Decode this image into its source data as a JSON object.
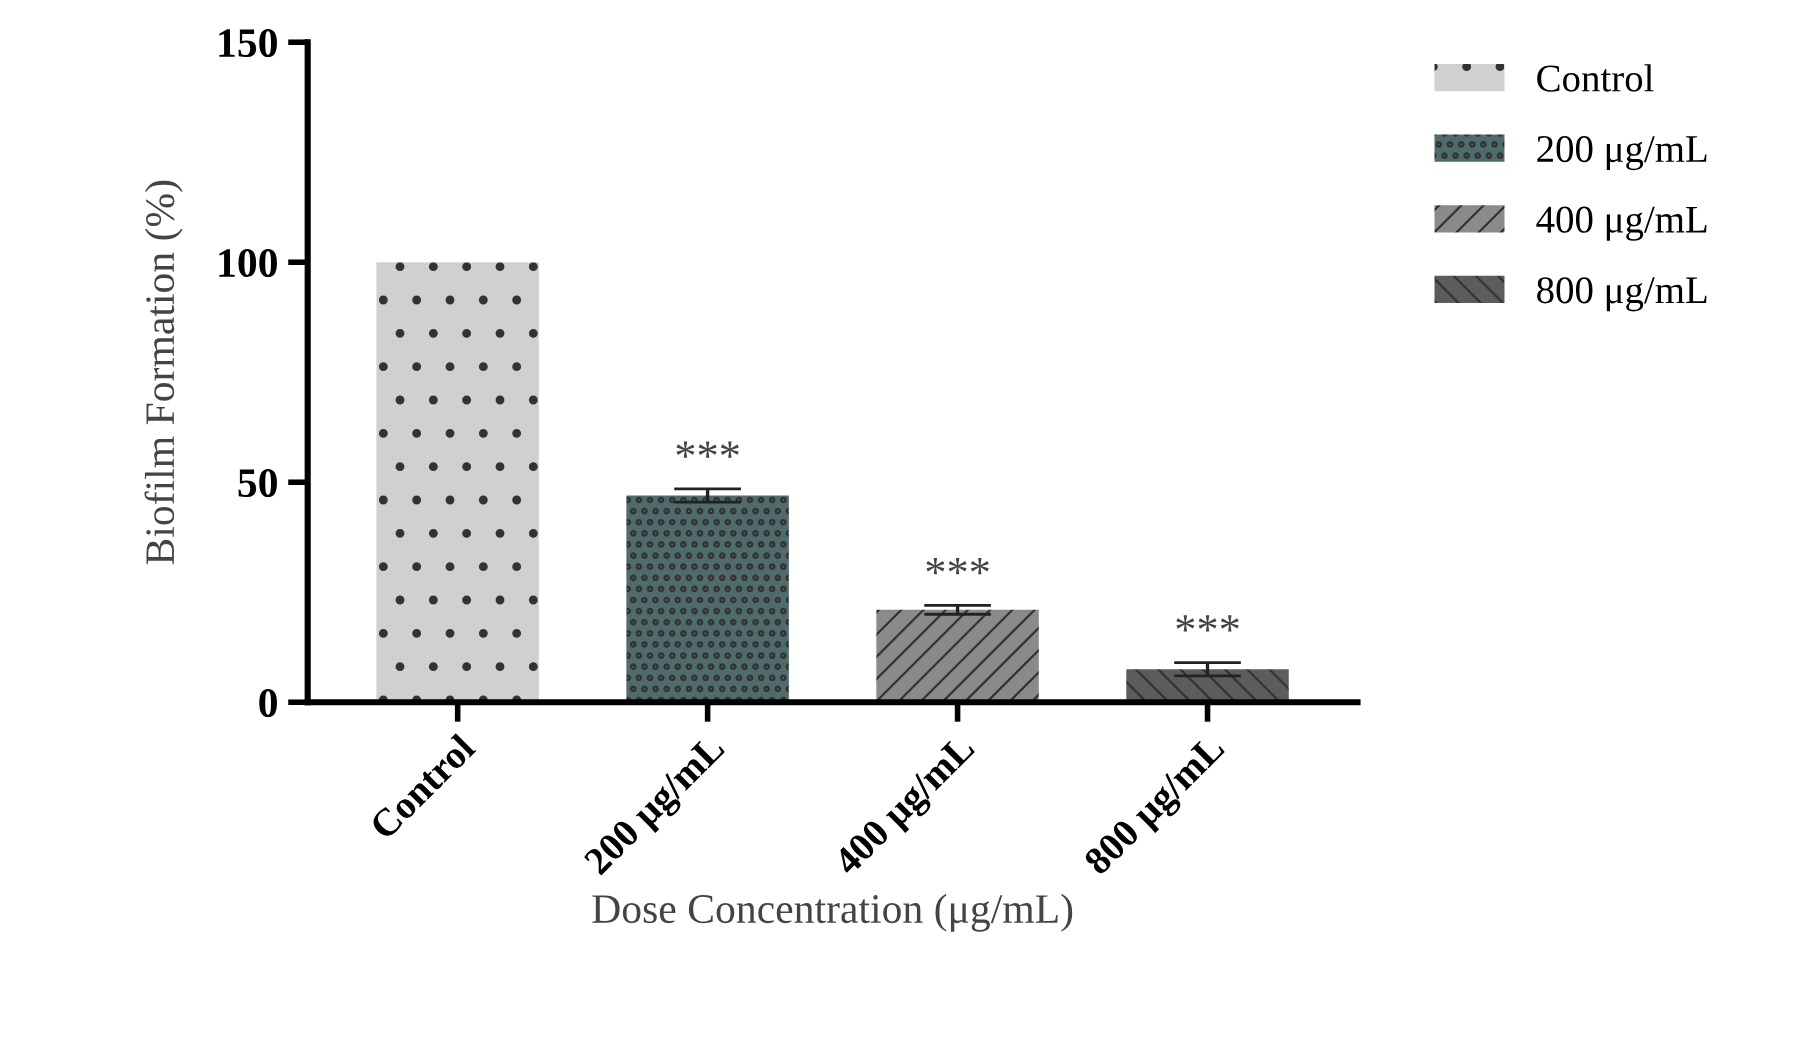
{
  "chart_data": {
    "type": "bar",
    "xlabel": "Dose Concentration (μg/mL)",
    "ylabel": "Biofilm Formation (%)",
    "categories": [
      "Control",
      "200 μg/mL",
      "400 μg/mL",
      "800 μg/mL"
    ],
    "series": [
      {
        "name": "Control",
        "color": "#d0d0d0",
        "values": [
          100,
          null,
          null,
          null
        ],
        "errors": [
          null,
          null,
          null,
          null
        ]
      },
      {
        "name": "200 μg/mL",
        "color": "#4f6b6b",
        "values": [
          null,
          47,
          null,
          null
        ],
        "errors": [
          null,
          1.5,
          null,
          null
        ]
      },
      {
        "name": "400 μg/mL",
        "color": "#8a8a8a",
        "values": [
          null,
          null,
          21,
          null
        ],
        "errors": [
          null,
          null,
          1,
          null
        ]
      },
      {
        "name": "800 μg/mL",
        "color": "#5c5c5c",
        "values": [
          null,
          null,
          null,
          7.5
        ],
        "errors": [
          null,
          null,
          null,
          1.5
        ]
      }
    ],
    "ylim": [
      0,
      150
    ],
    "yticks": [
      0,
      50,
      100,
      150
    ],
    "annotations": [
      "***",
      "***",
      "***"
    ],
    "legend": "right",
    "grid": false
  }
}
